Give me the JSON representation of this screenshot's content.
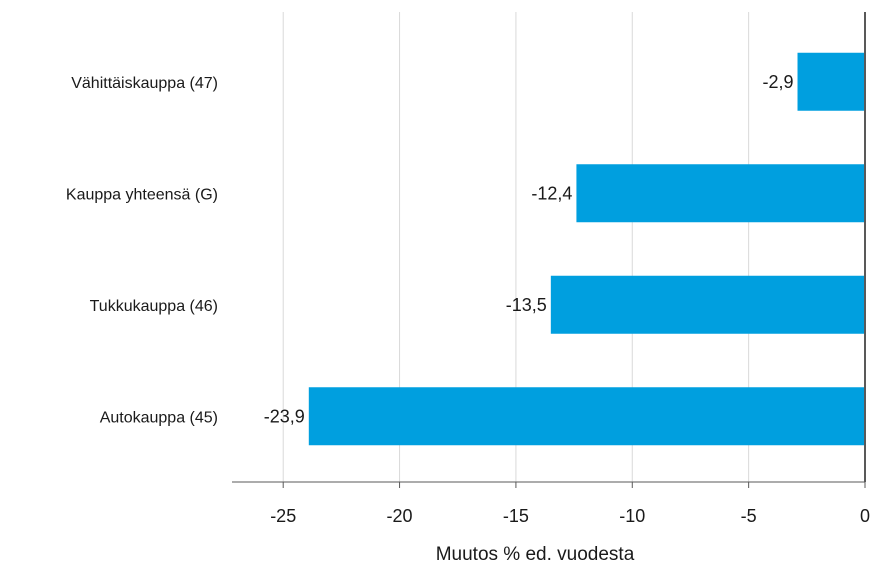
{
  "chart_data": {
    "type": "bar",
    "orientation": "horizontal",
    "categories": [
      "Vähittäiskauppa (47)",
      "Kauppa yhteensä (G)",
      "Tukkukauppa (46)",
      "Autokauppa (45)"
    ],
    "values": [
      -2.9,
      -12.4,
      -13.5,
      -23.9
    ],
    "value_labels": [
      "-2,9",
      "-12,4",
      "-13,5",
      "-23,9"
    ],
    "xlabel": "Muutos % ed. vuodesta",
    "ylabel": "",
    "xlim": [
      -27.2,
      0
    ],
    "ticks": [
      -25,
      -20,
      -15,
      -10,
      -5,
      0
    ],
    "tick_labels": [
      "-25",
      "-20",
      "-15",
      "-10",
      "-5",
      "0"
    ],
    "grid": true,
    "bar_color": "#009fdf",
    "grid_color": "#d9d9d9",
    "axis_color": "#595959"
  }
}
